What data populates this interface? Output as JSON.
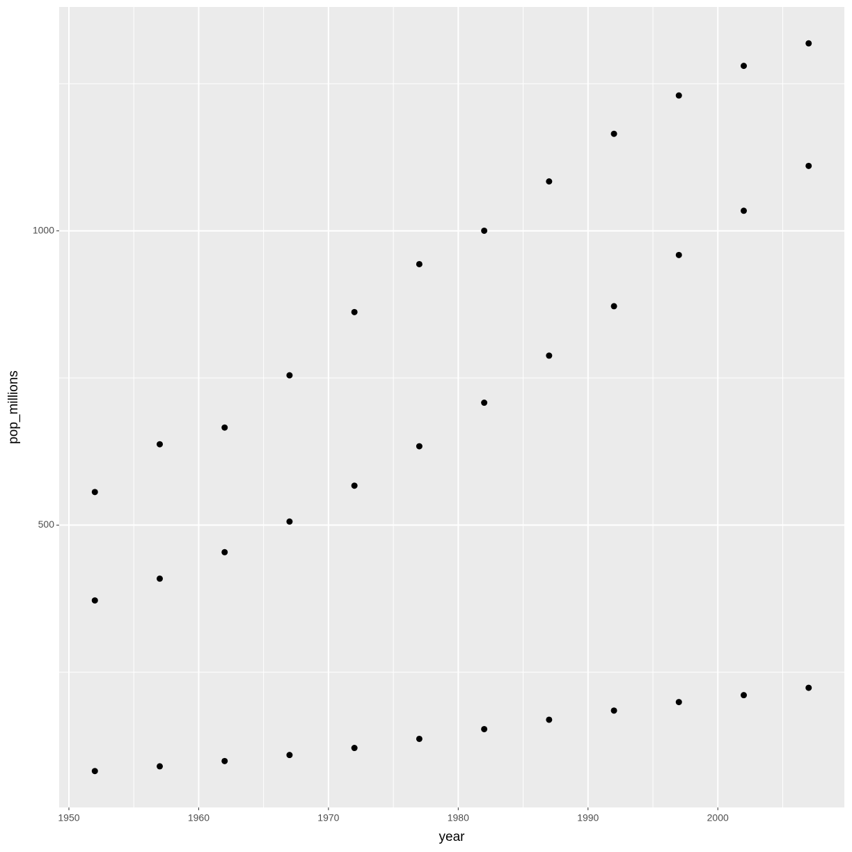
{
  "chart_data": {
    "type": "scatter",
    "x_label": "year",
    "y_label": "pop_millions",
    "x": [
      1952,
      1957,
      1962,
      1967,
      1972,
      1977,
      1982,
      1987,
      1992,
      1997,
      2002,
      2007
    ],
    "series": [
      {
        "color": "#000000",
        "values": [
          556.26,
          637.41,
          665.77,
          754.55,
          862.03,
          943.46,
          1000.28,
          1084.04,
          1164.97,
          1230.08,
          1280.4,
          1318.68
        ]
      },
      {
        "color": "#000000",
        "values": [
          372.0,
          409.0,
          454.0,
          506.0,
          567.0,
          634.0,
          708.0,
          788.0,
          872.0,
          959.0,
          1034.17,
          1110.4
        ]
      },
      {
        "color": "#000000",
        "values": [
          82.05,
          90.12,
          99.03,
          109.34,
          121.28,
          136.73,
          153.34,
          169.28,
          184.82,
          199.28,
          211.06,
          223.55
        ]
      }
    ],
    "xlim": [
      1949.25,
      2009.75
    ],
    "xticks": [
      1950,
      1960,
      1970,
      1980,
      1990,
      2000
    ],
    "xminor": [
      1955,
      1965,
      1975,
      1985,
      1995,
      2005
    ],
    "ylim": [
      20.2,
      1380.5
    ],
    "yticks": [
      500,
      1000
    ],
    "yminor": [
      250,
      750,
      1250
    ],
    "grid": true
  }
}
